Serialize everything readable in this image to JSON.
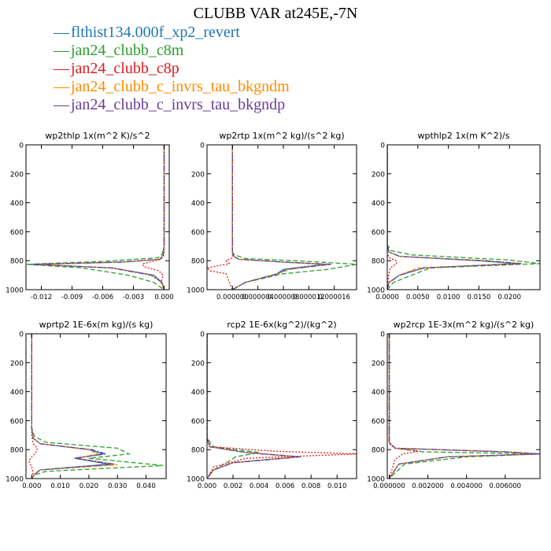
{
  "title": "CLUBB VAR at245E,-7N",
  "legend": [
    {
      "label": "flthist134.000f_xp2_revert",
      "color": "#1f77b4",
      "dash": ""
    },
    {
      "label": "jan24_clubb_c8m",
      "color": "#2ca02c",
      "dash": "6,3"
    },
    {
      "label": "jan24_clubb_c8p",
      "color": "#e41a1c",
      "dash": "2,2"
    },
    {
      "label": "jan24_clubb_c_invrs_tau_bkgndm",
      "color": "#ff8c00",
      "dash": "5,2"
    },
    {
      "label": "jan24_clubb_c_invrs_tau_bkgndp",
      "color": "#6a3d9a",
      "dash": "7,2,2,2"
    }
  ],
  "chart_data": [
    {
      "type": "line",
      "title": "wp2thlp  1x(m^2 K)/s^2",
      "xlim": [
        -0.0135,
        0.0005
      ],
      "ylim": [
        1000,
        0
      ],
      "xticks": [
        -0.012,
        -0.009,
        -0.006,
        -0.003,
        0.0
      ],
      "xtick_labels": [
        "-0.012",
        "-0.009",
        "-0.006",
        "-0.003",
        "0.000"
      ],
      "yticks": [
        0,
        200,
        400,
        600,
        800,
        1000
      ],
      "series": [
        {
          "x": [
            0,
            0,
            -0.0001,
            -0.0004,
            -0.004,
            -0.013,
            -0.005,
            -0.001,
            -0.0002,
            0
          ],
          "y": [
            0,
            700,
            760,
            790,
            810,
            825,
            850,
            900,
            950,
            1000
          ]
        },
        {
          "x": [
            0,
            0,
            -0.0002,
            -0.0006,
            -0.006,
            -0.0135,
            -0.008,
            -0.0035,
            -0.001,
            0
          ],
          "y": [
            0,
            700,
            755,
            780,
            805,
            825,
            850,
            900,
            950,
            1000
          ]
        },
        {
          "x": [
            0,
            0,
            0,
            -0.0003,
            -0.0021,
            -0.002,
            -0.0005,
            -0.0001,
            -0.0003,
            0
          ],
          "y": [
            0,
            700,
            760,
            790,
            820,
            840,
            870,
            900,
            950,
            1000
          ]
        },
        {
          "x": [
            0,
            0,
            -0.0001,
            -0.0004,
            -0.004,
            -0.0125,
            -0.005,
            -0.0012,
            -0.0002,
            0
          ],
          "y": [
            0,
            700,
            760,
            790,
            810,
            825,
            850,
            900,
            950,
            1000
          ]
        },
        {
          "x": [
            0,
            0,
            -0.0001,
            -0.0004,
            -0.0045,
            -0.0128,
            -0.0052,
            -0.0013,
            -0.0002,
            0
          ],
          "y": [
            0,
            700,
            760,
            790,
            810,
            825,
            850,
            900,
            950,
            1000
          ]
        }
      ]
    },
    {
      "type": "line",
      "title": "wp2rtp  1x(m^2 kg)/(s^2 kg)",
      "xlim": [
        -4e-06,
        1.95e-05
      ],
      "ylim": [
        1000,
        0
      ],
      "xticks": [
        0.0,
        4e-06,
        8e-06,
        1.2e-05,
        1.6e-05
      ],
      "xtick_labels": [
        "0.000000",
        "0.000004",
        "0.000008",
        "0.000012",
        "0.000016"
      ],
      "yticks": [
        0,
        200,
        400,
        600,
        800,
        1000
      ],
      "series": [
        {
          "x": [
            0,
            0,
            2e-07,
            1e-06,
            8e-06,
            1.45e-05,
            8e-06,
            7e-06,
            2e-06,
            0
          ],
          "y": [
            0,
            750,
            770,
            790,
            810,
            825,
            860,
            890,
            950,
            1000
          ]
        },
        {
          "x": [
            0,
            0,
            3e-07,
            2e-06,
            1.2e-05,
            1.95e-05,
            1.5e-05,
            8e-06,
            2e-06,
            0
          ],
          "y": [
            0,
            740,
            760,
            785,
            805,
            825,
            860,
            890,
            950,
            1000
          ]
        },
        {
          "x": [
            0,
            0,
            0,
            -1e-06,
            -5e-07,
            -4e-06,
            -3.5e-06,
            -1e-06,
            -5e-07,
            0
          ],
          "y": [
            0,
            750,
            780,
            800,
            820,
            850,
            870,
            890,
            950,
            1000
          ]
        },
        {
          "x": [
            0,
            0,
            2e-07,
            1e-06,
            8e-06,
            1.5e-05,
            9e-06,
            7e-06,
            2e-06,
            0
          ],
          "y": [
            0,
            750,
            770,
            790,
            810,
            825,
            860,
            890,
            950,
            1000
          ]
        },
        {
          "x": [
            0,
            0,
            2e-07,
            1e-06,
            8.5e-06,
            1.55e-05,
            8.5e-06,
            7.2e-06,
            2e-06,
            0
          ],
          "y": [
            0,
            750,
            770,
            790,
            810,
            825,
            860,
            890,
            950,
            1000
          ]
        }
      ]
    },
    {
      "type": "line",
      "title": "wpthlp2  1x(m K^2)/s",
      "xlim": [
        0.0,
        0.025
      ],
      "ylim": [
        1000,
        0
      ],
      "xticks": [
        0.0,
        0.005,
        0.01,
        0.015,
        0.02
      ],
      "xtick_labels": [
        "0.0000",
        "0.0050",
        "0.0100",
        "0.0150",
        "0.0200"
      ],
      "yticks": [
        0,
        200,
        400,
        600,
        800,
        1000
      ],
      "series": [
        {
          "x": [
            0,
            0,
            0.0003,
            0.002,
            0.015,
            0.021,
            0.006,
            0.002,
            0.0003,
            0
          ],
          "y": [
            0,
            700,
            740,
            770,
            800,
            820,
            850,
            900,
            950,
            1000
          ]
        },
        {
          "x": [
            0,
            0,
            0.0006,
            0.004,
            0.02,
            0.025,
            0.007,
            0.004,
            0.001,
            0
          ],
          "y": [
            0,
            690,
            730,
            760,
            795,
            820,
            850,
            900,
            950,
            1000
          ]
        },
        {
          "x": [
            0,
            0,
            0,
            0.0003,
            0.0015,
            0.0015,
            0.0005,
            0.0002,
            0.0001,
            0
          ],
          "y": [
            0,
            700,
            750,
            780,
            800,
            820,
            850,
            900,
            950,
            1000
          ]
        },
        {
          "x": [
            0,
            0,
            0.0003,
            0.002,
            0.016,
            0.022,
            0.005,
            0.002,
            0.0003,
            0
          ],
          "y": [
            0,
            700,
            740,
            770,
            800,
            820,
            850,
            900,
            950,
            1000
          ]
        },
        {
          "x": [
            0,
            0,
            0.0003,
            0.002,
            0.016,
            0.022,
            0.006,
            0.002,
            0.0003,
            0
          ],
          "y": [
            0,
            700,
            740,
            770,
            800,
            820,
            850,
            900,
            950,
            1000
          ]
        }
      ]
    },
    {
      "type": "line",
      "title": "wprtp2  1E-6x(m kg)/(s kg)",
      "xlim": [
        -0.002,
        0.047
      ],
      "ylim": [
        1000,
        0
      ],
      "xticks": [
        0.0,
        0.01,
        0.02,
        0.03,
        0.04
      ],
      "xtick_labels": [
        "0.000",
        "0.010",
        "0.020",
        "0.030",
        "0.040"
      ],
      "yticks": [
        0,
        200,
        400,
        600,
        800,
        1000
      ],
      "series": [
        {
          "x": [
            0,
            0,
            0.0005,
            0.003,
            0.02,
            0.025,
            0.015,
            0.027,
            0.003,
            0.001,
            0
          ],
          "y": [
            0,
            650,
            720,
            760,
            800,
            830,
            860,
            900,
            940,
            970,
            1000
          ]
        },
        {
          "x": [
            0,
            0,
            0.001,
            0.005,
            0.03,
            0.034,
            0.02,
            0.046,
            0.005,
            0.001,
            0
          ],
          "y": [
            0,
            650,
            710,
            750,
            790,
            830,
            860,
            910,
            950,
            975,
            1000
          ]
        },
        {
          "x": [
            0,
            0,
            0.0005,
            0.002,
            0.0015,
            0.0,
            -0.001,
            0.0,
            0.0005,
            0
          ],
          "y": [
            0,
            700,
            760,
            790,
            820,
            850,
            880,
            920,
            960,
            1000
          ]
        },
        {
          "x": [
            0,
            0,
            0.0005,
            0.003,
            0.02,
            0.023,
            0.016,
            0.03,
            0.003,
            0.001,
            0
          ],
          "y": [
            0,
            650,
            720,
            760,
            800,
            830,
            860,
            905,
            940,
            970,
            1000
          ]
        },
        {
          "x": [
            0,
            0,
            0.0005,
            0.003,
            0.021,
            0.026,
            0.015,
            0.029,
            0.003,
            0.001,
            0
          ],
          "y": [
            0,
            650,
            720,
            760,
            800,
            830,
            860,
            900,
            940,
            970,
            1000
          ]
        }
      ]
    },
    {
      "type": "line",
      "title": "rcp2  1E-6x(kg^2)/(kg^2)",
      "xlim": [
        0.0,
        0.0115
      ],
      "ylim": [
        1000,
        0
      ],
      "xticks": [
        0.0,
        0.002,
        0.004,
        0.006,
        0.008,
        0.01
      ],
      "xtick_labels": [
        "0.000",
        "0.002",
        "0.004",
        "0.006",
        "0.008",
        "0.010"
      ],
      "yticks": [
        0,
        200,
        400,
        600,
        800,
        1000
      ],
      "series": [
        {
          "x": [
            0,
            0,
            0.0002,
            0.003,
            0.007,
            0.002,
            0.0005,
            0
          ],
          "y": [
            0,
            720,
            780,
            820,
            850,
            890,
            940,
            1000
          ]
        },
        {
          "x": [
            0,
            0,
            0.0005,
            0.004,
            0.0022,
            0.0015,
            0.0005,
            0
          ],
          "y": [
            0,
            720,
            780,
            820,
            850,
            890,
            940,
            1000
          ]
        },
        {
          "x": [
            0,
            0,
            0.0003,
            0.005,
            0.0115,
            0.003,
            0.0005,
            0
          ],
          "y": [
            0,
            720,
            780,
            810,
            830,
            860,
            920,
            1000
          ]
        },
        {
          "x": [
            0,
            0,
            0.0002,
            0.003,
            0.0068,
            0.002,
            0.0005,
            0
          ],
          "y": [
            0,
            720,
            780,
            820,
            850,
            890,
            940,
            1000
          ]
        },
        {
          "x": [
            0,
            0,
            0.0002,
            0.003,
            0.0072,
            0.002,
            0.0005,
            0
          ],
          "y": [
            0,
            720,
            780,
            820,
            850,
            890,
            940,
            1000
          ]
        }
      ]
    },
    {
      "type": "line",
      "title": "wp2rcp  1E-3x(m^2 kg)/(s^2 kg)",
      "xlim": [
        -0.0001,
        0.0078
      ],
      "ylim": [
        1000,
        0
      ],
      "xticks": [
        0.0,
        0.002,
        0.004,
        0.006
      ],
      "xtick_labels": [
        "0.000000",
        "0.002000",
        "0.004000",
        "0.006000"
      ],
      "yticks": [
        0,
        200,
        400,
        600,
        800,
        1000
      ],
      "series": [
        {
          "x": [
            0,
            0,
            0.0003,
            0.006,
            0.0078,
            0.003,
            0.0005,
            0
          ],
          "y": [
            0,
            750,
            790,
            815,
            830,
            850,
            900,
            1000
          ]
        },
        {
          "x": [
            0,
            0,
            0.0003,
            0.0017,
            0.0078,
            0.004,
            0.0008,
            0
          ],
          "y": [
            0,
            750,
            790,
            815,
            830,
            850,
            900,
            1000
          ]
        },
        {
          "x": [
            0,
            0,
            0.0003,
            0.0016,
            0.0007,
            0.0003,
            0
          ],
          "y": [
            0,
            760,
            790,
            810,
            830,
            870,
            1000
          ]
        },
        {
          "x": [
            0,
            0,
            0.0003,
            0.006,
            0.0075,
            0.003,
            0.0005,
            0
          ],
          "y": [
            0,
            750,
            790,
            815,
            830,
            850,
            900,
            1000
          ]
        },
        {
          "x": [
            0,
            0,
            0.0003,
            0.006,
            0.0078,
            0.003,
            0.0005,
            0
          ],
          "y": [
            0,
            750,
            790,
            815,
            830,
            850,
            900,
            1000
          ]
        }
      ]
    }
  ]
}
